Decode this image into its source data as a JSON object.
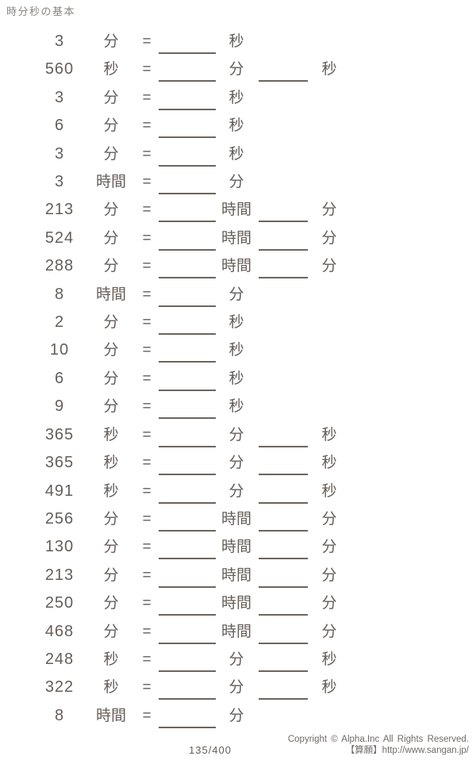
{
  "title": "時分秒の基本",
  "equals": "=",
  "colors": {
    "text": "#655e58",
    "line": "#6c655f",
    "title": "#8a8580",
    "footer": "#6f6b67",
    "background": "#ffffff"
  },
  "problems": [
    {
      "value": "3",
      "unit": "分",
      "answers": [
        "秒"
      ]
    },
    {
      "value": "560",
      "unit": "秒",
      "answers": [
        "分",
        "秒"
      ]
    },
    {
      "value": "3",
      "unit": "分",
      "answers": [
        "秒"
      ]
    },
    {
      "value": "6",
      "unit": "分",
      "answers": [
        "秒"
      ]
    },
    {
      "value": "3",
      "unit": "分",
      "answers": [
        "秒"
      ]
    },
    {
      "value": "3",
      "unit": "時間",
      "answers": [
        "分"
      ]
    },
    {
      "value": "213",
      "unit": "分",
      "answers": [
        "時間",
        "分"
      ]
    },
    {
      "value": "524",
      "unit": "分",
      "answers": [
        "時間",
        "分"
      ]
    },
    {
      "value": "288",
      "unit": "分",
      "answers": [
        "時間",
        "分"
      ]
    },
    {
      "value": "8",
      "unit": "時間",
      "answers": [
        "分"
      ]
    },
    {
      "value": "2",
      "unit": "分",
      "answers": [
        "秒"
      ]
    },
    {
      "value": "10",
      "unit": "分",
      "answers": [
        "秒"
      ]
    },
    {
      "value": "6",
      "unit": "分",
      "answers": [
        "秒"
      ]
    },
    {
      "value": "9",
      "unit": "分",
      "answers": [
        "秒"
      ]
    },
    {
      "value": "365",
      "unit": "秒",
      "answers": [
        "分",
        "秒"
      ]
    },
    {
      "value": "365",
      "unit": "秒",
      "answers": [
        "分",
        "秒"
      ]
    },
    {
      "value": "491",
      "unit": "秒",
      "answers": [
        "分",
        "秒"
      ]
    },
    {
      "value": "256",
      "unit": "分",
      "answers": [
        "時間",
        "分"
      ]
    },
    {
      "value": "130",
      "unit": "分",
      "answers": [
        "時間",
        "分"
      ]
    },
    {
      "value": "213",
      "unit": "分",
      "answers": [
        "時間",
        "分"
      ]
    },
    {
      "value": "250",
      "unit": "分",
      "answers": [
        "時間",
        "分"
      ]
    },
    {
      "value": "468",
      "unit": "分",
      "answers": [
        "時間",
        "分"
      ]
    },
    {
      "value": "248",
      "unit": "秒",
      "answers": [
        "分",
        "秒"
      ]
    },
    {
      "value": "322",
      "unit": "秒",
      "answers": [
        "分",
        "秒"
      ]
    },
    {
      "value": "8",
      "unit": "時間",
      "answers": [
        "分"
      ]
    }
  ],
  "footer": {
    "page": "135/400",
    "copyright": "Copyright © Alpha.Inc All Rights Reserved.",
    "site": "【算願】http://www.sangan.jp/"
  }
}
